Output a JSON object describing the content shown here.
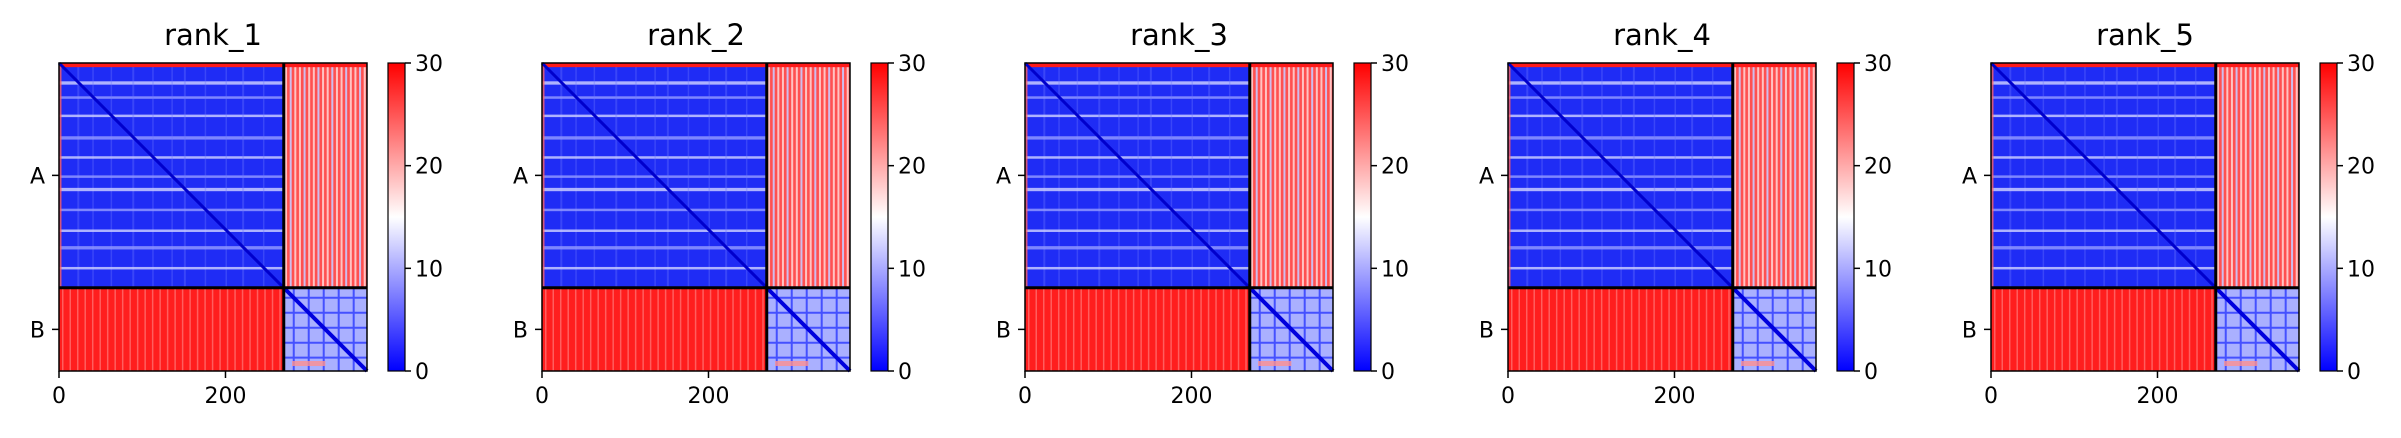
{
  "chart_data": [
    {
      "type": "heatmap",
      "title": "rank_1",
      "x_ticks": [
        0,
        200
      ],
      "y_tick_labels": [
        "A",
        "B"
      ],
      "chain_boundary": 270,
      "seq_length": 370,
      "colorbar": {
        "min": 0,
        "max": 30,
        "ticks": [
          0,
          10,
          20,
          30
        ],
        "colors": [
          "#0000ff",
          "#ffffff",
          "#ff0000"
        ]
      },
      "chain_A_stripe_rows": [
        22,
        40,
        62,
        88,
        112,
        135,
        150,
        175,
        200,
        220,
        245
      ],
      "chain_B_pattern": [
        12,
        30,
        48,
        66,
        84
      ]
    },
    {
      "type": "heatmap",
      "title": "rank_2",
      "x_ticks": [
        0,
        200
      ],
      "y_tick_labels": [
        "A",
        "B"
      ],
      "chain_boundary": 270,
      "seq_length": 370,
      "colorbar": {
        "min": 0,
        "max": 30,
        "ticks": [
          0,
          10,
          20,
          30
        ],
        "colors": [
          "#0000ff",
          "#ffffff",
          "#ff0000"
        ]
      },
      "chain_A_stripe_rows": [
        22,
        40,
        62,
        88,
        112,
        135,
        150,
        175,
        200,
        220,
        245
      ],
      "chain_B_pattern": [
        12,
        30,
        48,
        66,
        84
      ]
    },
    {
      "type": "heatmap",
      "title": "rank_3",
      "x_ticks": [
        0,
        200
      ],
      "y_tick_labels": [
        "A",
        "B"
      ],
      "chain_boundary": 270,
      "seq_length": 370,
      "colorbar": {
        "min": 0,
        "max": 30,
        "ticks": [
          0,
          10,
          20,
          30
        ],
        "colors": [
          "#0000ff",
          "#ffffff",
          "#ff0000"
        ]
      },
      "chain_A_stripe_rows": [
        22,
        40,
        62,
        88,
        112,
        135,
        150,
        175,
        200,
        220,
        245
      ],
      "chain_B_pattern": [
        12,
        30,
        48,
        66,
        84
      ]
    },
    {
      "type": "heatmap",
      "title": "rank_4",
      "x_ticks": [
        0,
        200
      ],
      "y_tick_labels": [
        "A",
        "B"
      ],
      "chain_boundary": 270,
      "seq_length": 370,
      "colorbar": {
        "min": 0,
        "max": 30,
        "ticks": [
          0,
          10,
          20,
          30
        ],
        "colors": [
          "#0000ff",
          "#ffffff",
          "#ff0000"
        ]
      },
      "chain_A_stripe_rows": [
        22,
        40,
        62,
        88,
        112,
        135,
        150,
        175,
        200,
        220,
        245
      ],
      "chain_B_pattern": [
        12,
        30,
        48,
        66,
        84
      ]
    },
    {
      "type": "heatmap",
      "title": "rank_5",
      "x_ticks": [
        0,
        200
      ],
      "y_tick_labels": [
        "A",
        "B"
      ],
      "chain_boundary": 270,
      "seq_length": 370,
      "colorbar": {
        "min": 0,
        "max": 30,
        "ticks": [
          0,
          10,
          20,
          30
        ],
        "colors": [
          "#0000ff",
          "#ffffff",
          "#ff0000"
        ]
      },
      "chain_A_stripe_rows": [
        22,
        40,
        62,
        88,
        112,
        135,
        150,
        175,
        200,
        220,
        245
      ],
      "chain_B_pattern": [
        12,
        30,
        48,
        66,
        84
      ]
    }
  ]
}
